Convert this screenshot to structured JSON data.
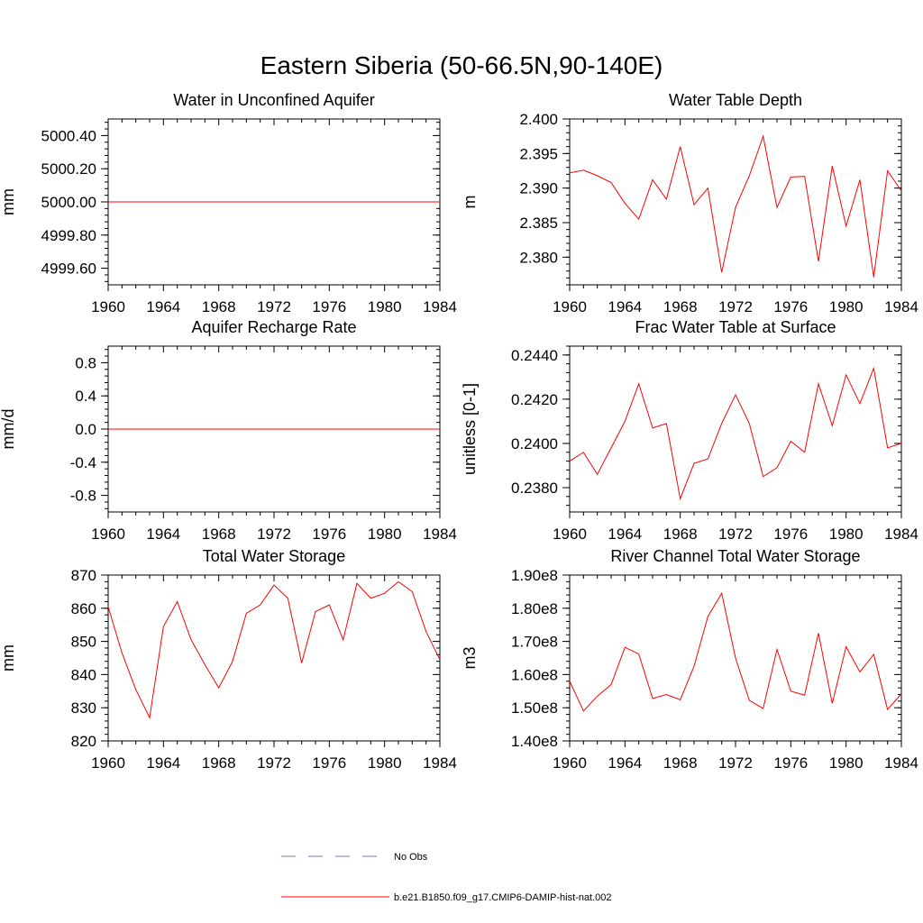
{
  "title": "Eastern Siberia (50-66.5N,90-140E)",
  "colors": {
    "model": "#ff0000",
    "obs": "#7777cc",
    "axis": "#000000"
  },
  "legend": {
    "entries": [
      {
        "label": "No Obs",
        "style": "dashed",
        "color": "#7777cc"
      },
      {
        "label": "b.e21.B1850.f09_g17.CMIP6-DAMIP-hist-nat.002",
        "style": "solid",
        "color": "#ff0000"
      }
    ]
  },
  "chart_data": [
    {
      "type": "line",
      "title": "Water in Unconfined Aquifer",
      "ylabel": "mm",
      "xlim": [
        1960,
        1984
      ],
      "ylim": [
        4999.5,
        5000.5
      ],
      "xticks": [
        "1960",
        "1964",
        "1968",
        "1972",
        "1976",
        "1980",
        "1984"
      ],
      "yticks": [
        "4999.60",
        "4999.80",
        "5000.00",
        "5000.20",
        "5000.40"
      ],
      "x": [
        1960,
        1984
      ],
      "series": [
        {
          "values": [
            5000.0,
            5000.0
          ]
        }
      ]
    },
    {
      "type": "line",
      "title": "Water Table Depth",
      "ylabel": "m",
      "xlim": [
        1960,
        1984
      ],
      "ylim": [
        2.376,
        2.4
      ],
      "xticks": [
        "1960",
        "1964",
        "1968",
        "1972",
        "1976",
        "1980",
        "1984"
      ],
      "yticks": [
        "2.380",
        "2.385",
        "2.390",
        "2.395",
        "2.400"
      ],
      "x": [
        1960,
        1961,
        1962,
        1963,
        1964,
        1965,
        1966,
        1967,
        1968,
        1969,
        1970,
        1971,
        1972,
        1973,
        1974,
        1975,
        1976,
        1977,
        1978,
        1979,
        1980,
        1981,
        1982,
        1983,
        1984
      ],
      "series": [
        {
          "values": [
            2.3922,
            2.3926,
            2.3918,
            2.3908,
            2.3878,
            2.3855,
            2.3912,
            2.3884,
            2.396,
            2.3876,
            2.39,
            2.3778,
            2.3872,
            2.3918,
            2.3975,
            2.3872,
            2.3916,
            2.3917,
            2.3794,
            2.3932,
            2.3845,
            2.3912,
            2.3771,
            2.3925,
            2.3896
          ]
        }
      ]
    },
    {
      "type": "line",
      "title": "Aquifer Recharge Rate",
      "ylabel": "mm/d",
      "xlim": [
        1960,
        1984
      ],
      "ylim": [
        -1.0,
        1.0
      ],
      "xticks": [
        "1960",
        "1964",
        "1968",
        "1972",
        "1976",
        "1980",
        "1984"
      ],
      "yticks": [
        "-0.8",
        "-0.4",
        "0.0",
        "0.4",
        "0.8"
      ],
      "x": [
        1960,
        1984
      ],
      "series": [
        {
          "values": [
            0.0,
            0.0
          ]
        }
      ]
    },
    {
      "type": "line",
      "title": "Frac Water Table at Surface",
      "ylabel": "unitless [0-1]",
      "xlim": [
        1960,
        1984
      ],
      "ylim": [
        0.2369,
        0.2444
      ],
      "xticks": [
        "1960",
        "1964",
        "1968",
        "1972",
        "1976",
        "1980",
        "1984"
      ],
      "yticks": [
        "0.2380",
        "0.2400",
        "0.2420",
        "0.2440"
      ],
      "x": [
        1960,
        1961,
        1962,
        1963,
        1964,
        1965,
        1966,
        1967,
        1968,
        1969,
        1970,
        1971,
        1972,
        1973,
        1974,
        1975,
        1976,
        1977,
        1978,
        1979,
        1980,
        1981,
        1982,
        1983,
        1984
      ],
      "series": [
        {
          "values": [
            0.2392,
            0.2396,
            0.2386,
            0.2398,
            0.241,
            0.2427,
            0.2407,
            0.2409,
            0.2375,
            0.2391,
            0.2393,
            0.2409,
            0.2422,
            0.2409,
            0.2385,
            0.2389,
            0.2401,
            0.2396,
            0.2427,
            0.2408,
            0.2431,
            0.2418,
            0.2434,
            0.2398,
            0.24
          ]
        }
      ]
    },
    {
      "type": "line",
      "title": "Total Water Storage",
      "ylabel": "mm",
      "xlim": [
        1960,
        1984
      ],
      "ylim": [
        820,
        870
      ],
      "xticks": [
        "1960",
        "1964",
        "1968",
        "1972",
        "1976",
        "1980",
        "1984"
      ],
      "yticks": [
        "820",
        "830",
        "840",
        "850",
        "860",
        "870"
      ],
      "x": [
        1960,
        1961,
        1962,
        1963,
        1964,
        1965,
        1966,
        1967,
        1968,
        1969,
        1970,
        1971,
        1972,
        1973,
        1974,
        1975,
        1976,
        1977,
        1978,
        1979,
        1980,
        1981,
        1982,
        1983,
        1984
      ],
      "series": [
        {
          "values": [
            860.5,
            846.5,
            835.5,
            827,
            854.5,
            862,
            850.5,
            843,
            836,
            844,
            858.5,
            861,
            867,
            863,
            843.5,
            859,
            861,
            850.5,
            867.5,
            863,
            864.5,
            868,
            865,
            853,
            844.5
          ]
        }
      ]
    },
    {
      "type": "line",
      "title": "River Channel Total Water Storage",
      "ylabel": "m3",
      "xlim": [
        1960,
        1984
      ],
      "ylim": [
        140000000,
        190000000
      ],
      "xticks": [
        "1960",
        "1964",
        "1968",
        "1972",
        "1976",
        "1980",
        "1984"
      ],
      "yticks": [
        "1.40e8",
        "1.50e8",
        "1.60e8",
        "1.70e8",
        "1.80e8",
        "1.90e8"
      ],
      "x": [
        1960,
        1961,
        1962,
        1963,
        1964,
        1965,
        1966,
        1967,
        1968,
        1969,
        1970,
        1971,
        1972,
        1973,
        1974,
        1975,
        1976,
        1977,
        1978,
        1979,
        1980,
        1981,
        1982,
        1983,
        1984
      ],
      "series": [
        {
          "values": [
            158000000,
            149000000,
            153500000,
            157000000,
            168200000,
            166200000,
            152800000,
            154000000,
            152400000,
            162500000,
            177500000,
            184500000,
            165000000,
            152200000,
            149800000,
            167600000,
            155000000,
            153800000,
            172500000,
            151300000,
            168400000,
            160800000,
            166100000,
            149500000,
            154200000
          ]
        }
      ]
    }
  ]
}
